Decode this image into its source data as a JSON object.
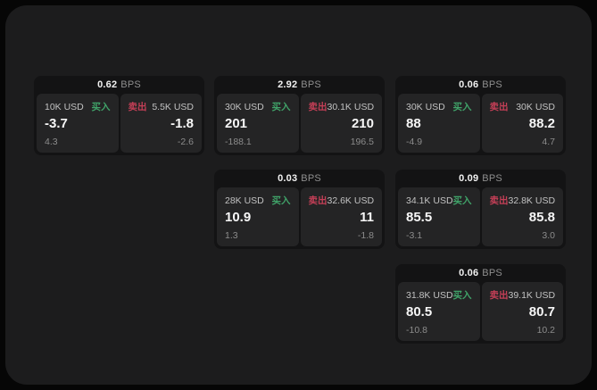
{
  "colors": {
    "page_bg": "#060606",
    "panel_bg": "#1c1c1d",
    "card_bg": "#131314",
    "tile_bg": "#242425",
    "buy": "#40a369",
    "sell": "#c43f57"
  },
  "labels": {
    "bps": "BPS",
    "buy": "买入",
    "sell": "卖出"
  },
  "cards": [
    {
      "bps": "0.62",
      "buy": {
        "notional": "10K USD",
        "price": "-3.7",
        "delta": "4.3"
      },
      "sell": {
        "notional": "5.5K USD",
        "price": "-1.8",
        "delta": "-2.6"
      }
    },
    {
      "bps": "2.92",
      "buy": {
        "notional": "30K USD",
        "price": "201",
        "delta": "-188.1"
      },
      "sell": {
        "notional": "30.1K USD",
        "price": "210",
        "delta": "196.5"
      }
    },
    {
      "bps": "0.06",
      "buy": {
        "notional": "30K USD",
        "price": "88",
        "delta": "-4.9"
      },
      "sell": {
        "notional": "30K USD",
        "price": "88.2",
        "delta": "4.7"
      }
    },
    {
      "bps": "0.03",
      "buy": {
        "notional": "28K USD",
        "price": "10.9",
        "delta": "1.3"
      },
      "sell": {
        "notional": "32.6K USD",
        "price": "11",
        "delta": "-1.8"
      }
    },
    {
      "bps": "0.09",
      "buy": {
        "notional": "34.1K USD",
        "price": "85.5",
        "delta": "-3.1"
      },
      "sell": {
        "notional": "32.8K USD",
        "price": "85.8",
        "delta": "3.0"
      }
    },
    {
      "bps": "0.06",
      "buy": {
        "notional": "31.8K USD",
        "price": "80.5",
        "delta": "-10.8"
      },
      "sell": {
        "notional": "39.1K USD",
        "price": "80.7",
        "delta": "10.2"
      }
    }
  ]
}
